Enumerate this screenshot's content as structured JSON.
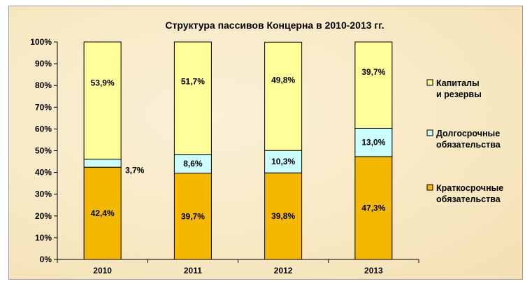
{
  "chart_data": {
    "type": "bar",
    "stacked": true,
    "percent": true,
    "title": "Структура пассивов Концерна в 2010-2013 гг.",
    "categories": [
      "2010",
      "2011",
      "2012",
      "2013"
    ],
    "series": [
      {
        "name": "Краткосрочные обязательства",
        "legend_lines": [
          "Краткосрочные",
          "обязательства"
        ],
        "color": "#f5b800",
        "values": [
          42.4,
          39.7,
          39.8,
          47.3
        ],
        "labels": [
          "42,4%",
          "39,7%",
          "39,8%",
          "47,3%"
        ]
      },
      {
        "name": "Долгосрочные обязательства",
        "legend_lines": [
          "Долгосрочные",
          "обязательства"
        ],
        "color": "#ccffff",
        "values": [
          3.7,
          8.6,
          10.3,
          13.0
        ],
        "labels": [
          "3,7%",
          "8,6%",
          "10,3%",
          "13,0%"
        ]
      },
      {
        "name": "Капиталы и резервы",
        "legend_lines": [
          "Капиталы",
          "и резервы"
        ],
        "color": "#ffff99",
        "values": [
          53.9,
          51.7,
          49.8,
          39.7
        ],
        "labels": [
          "53,9%",
          "51,7%",
          "49,8%",
          "39,7%"
        ]
      }
    ],
    "y_ticks": [
      "0%",
      "10%",
      "20%",
      "30%",
      "40%",
      "50%",
      "60%",
      "70%",
      "80%",
      "90%",
      "100%"
    ],
    "ylim": [
      0,
      100
    ],
    "grid": false,
    "legend_position": "right"
  }
}
